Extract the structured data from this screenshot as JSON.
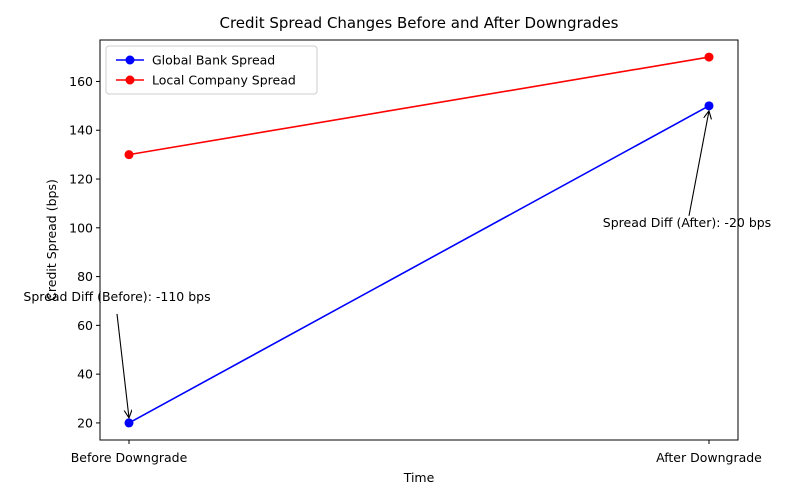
{
  "chart_data": {
    "type": "line",
    "title": "Credit Spread Changes Before and After Downgrades",
    "xlabel": "Time",
    "ylabel": "Credit Spread (bps)",
    "categories": [
      "Before Downgrade",
      "After Downgrade"
    ],
    "ylim": [
      13,
      177
    ],
    "yticks": [
      20,
      40,
      60,
      80,
      100,
      120,
      140,
      160
    ],
    "grid": false,
    "legend_position": "upper left",
    "series": [
      {
        "name": "Global Bank Spread",
        "values": [
          20,
          150
        ],
        "color": "#0000ff",
        "marker": "circle"
      },
      {
        "name": "Local Company Spread",
        "values": [
          130,
          170
        ],
        "color": "#ff0000",
        "marker": "circle"
      }
    ],
    "annotations": [
      {
        "text": "Spread Diff (Before): -110 bps",
        "point": {
          "category": "Before Downgrade",
          "value": 20
        },
        "text_at": {
          "category": "Before Downgrade",
          "value": 70
        },
        "align": "center"
      },
      {
        "text": "Spread Diff (After): -20 bps",
        "point": {
          "category": "After Downgrade",
          "value": 150
        },
        "text_at": {
          "category": "After Downgrade",
          "value": 100
        },
        "align": "right"
      }
    ]
  }
}
